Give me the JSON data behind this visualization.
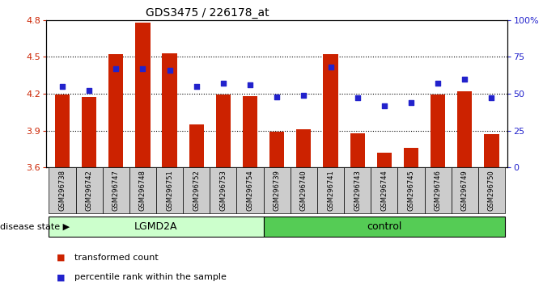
{
  "title": "GDS3475 / 226178_at",
  "samples": [
    "GSM296738",
    "GSM296742",
    "GSM296747",
    "GSM296748",
    "GSM296751",
    "GSM296752",
    "GSM296753",
    "GSM296754",
    "GSM296739",
    "GSM296740",
    "GSM296741",
    "GSM296743",
    "GSM296744",
    "GSM296745",
    "GSM296746",
    "GSM296749",
    "GSM296750"
  ],
  "bar_values": [
    4.19,
    4.17,
    4.52,
    4.78,
    4.53,
    3.95,
    4.19,
    4.18,
    3.89,
    3.91,
    4.52,
    3.88,
    3.72,
    3.76,
    4.19,
    4.22,
    3.87
  ],
  "dot_values": [
    55,
    52,
    67,
    67,
    66,
    55,
    57,
    56,
    48,
    49,
    68,
    47,
    42,
    44,
    57,
    60,
    47
  ],
  "groups": [
    {
      "label": "LGMD2A",
      "start": 0,
      "end": 8,
      "color": "#ccffcc"
    },
    {
      "label": "control",
      "start": 8,
      "end": 17,
      "color": "#55cc55"
    }
  ],
  "ylim_left": [
    3.6,
    4.8
  ],
  "ylim_right": [
    0,
    100
  ],
  "yticks_left": [
    3.6,
    3.9,
    4.2,
    4.5,
    4.8
  ],
  "yticks_right": [
    0,
    25,
    50,
    75,
    100
  ],
  "ytick_labels_right": [
    "0",
    "25",
    "50",
    "75",
    "100%"
  ],
  "grid_values": [
    3.9,
    4.2,
    4.5
  ],
  "bar_color": "#cc2200",
  "dot_color": "#2222cc",
  "bar_width": 0.55,
  "disease_state_label": "disease state",
  "legend": [
    {
      "label": "transformed count",
      "color": "#cc2200"
    },
    {
      "label": "percentile rank within the sample",
      "color": "#2222cc"
    }
  ],
  "lgmd2a_color": "#ccffcc",
  "control_color": "#55cc55",
  "xtick_bg_color": "#cccccc",
  "n_lgmd2a": 8,
  "n_control": 9
}
